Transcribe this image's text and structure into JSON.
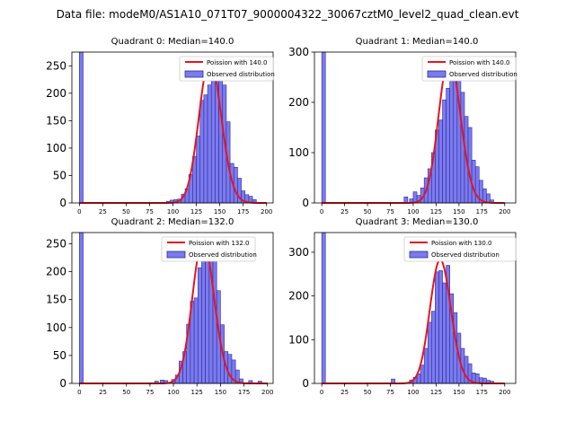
{
  "figure_title": "Data file: modeM0/AS1A10_071T07_9000004322_30067cztM0_level2_quad_clean.evt",
  "colors": {
    "bar_fill": "#7b7bec",
    "bar_edge": "#2a2aa8",
    "curve": "#e8141c"
  },
  "legend": {
    "observed_label": "Observed distribution"
  },
  "chart_data": [
    {
      "type": "bar",
      "title": "Quadrant 0: Median=140.0",
      "poisson_label": "Poission with 140.0",
      "poisson_mean": 140.0,
      "poisson_scale": 262,
      "xlim": [
        -8,
        207
      ],
      "ylim": [
        0,
        275
      ],
      "xticks": [
        0,
        25,
        50,
        75,
        100,
        125,
        150,
        175,
        200
      ],
      "yticks": [
        0,
        50,
        100,
        150,
        200,
        250
      ],
      "bin_width": 4,
      "bins": [
        [
          0,
          275
        ],
        [
          93,
          3
        ],
        [
          97,
          5
        ],
        [
          101,
          6
        ],
        [
          105,
          7
        ],
        [
          109,
          16
        ],
        [
          113,
          26
        ],
        [
          117,
          52
        ],
        [
          121,
          85
        ],
        [
          125,
          122
        ],
        [
          129,
          187
        ],
        [
          133,
          197
        ],
        [
          137,
          215
        ],
        [
          141,
          257
        ],
        [
          145,
          265
        ],
        [
          149,
          230
        ],
        [
          153,
          215
        ],
        [
          157,
          148
        ],
        [
          161,
          72
        ],
        [
          165,
          65
        ],
        [
          169,
          45
        ],
        [
          173,
          22
        ],
        [
          177,
          15
        ],
        [
          181,
          12
        ],
        [
          185,
          6
        ]
      ]
    },
    {
      "type": "bar",
      "title": "Quadrant 1: Median=140.0",
      "poisson_label": "Poission with 140.0",
      "poisson_mean": 140.0,
      "poisson_scale": 290,
      "xlim": [
        -8,
        212
      ],
      "ylim": [
        0,
        300
      ],
      "xticks": [
        0,
        25,
        50,
        75,
        100,
        125,
        150,
        175,
        200
      ],
      "yticks": [
        0,
        100,
        200,
        300
      ],
      "bin_width": 4,
      "bins": [
        [
          0,
          300
        ],
        [
          90,
          12
        ],
        [
          96,
          8
        ],
        [
          100,
          22
        ],
        [
          104,
          15
        ],
        [
          108,
          30
        ],
        [
          112,
          50
        ],
        [
          116,
          68
        ],
        [
          120,
          100
        ],
        [
          124,
          145
        ],
        [
          128,
          165
        ],
        [
          132,
          205
        ],
        [
          136,
          228
        ],
        [
          140,
          245
        ],
        [
          144,
          270
        ],
        [
          148,
          282
        ],
        [
          152,
          220
        ],
        [
          156,
          172
        ],
        [
          160,
          150
        ],
        [
          164,
          85
        ],
        [
          168,
          72
        ],
        [
          172,
          45
        ],
        [
          176,
          28
        ],
        [
          180,
          18
        ],
        [
          184,
          6
        ]
      ]
    },
    {
      "type": "bar",
      "title": "Quadrant 2: Median=132.0",
      "poisson_label": "Poission with 132.0",
      "poisson_mean": 132.0,
      "poisson_scale": 256,
      "xlim": [
        -8,
        206
      ],
      "ylim": [
        0,
        270
      ],
      "xticks": [
        0,
        25,
        50,
        75,
        100,
        125,
        150,
        175,
        200
      ],
      "yticks": [
        0,
        50,
        100,
        150,
        200,
        250
      ],
      "bin_width": 4,
      "bins": [
        [
          0,
          270
        ],
        [
          80,
          4
        ],
        [
          86,
          6
        ],
        [
          90,
          5
        ],
        [
          98,
          7
        ],
        [
          102,
          15
        ],
        [
          106,
          40
        ],
        [
          110,
          57
        ],
        [
          114,
          106
        ],
        [
          118,
          147
        ],
        [
          122,
          153
        ],
        [
          126,
          207
        ],
        [
          130,
          225
        ],
        [
          134,
          245
        ],
        [
          138,
          240
        ],
        [
          142,
          220
        ],
        [
          146,
          166
        ],
        [
          150,
          105
        ],
        [
          154,
          57
        ],
        [
          158,
          52
        ],
        [
          162,
          42
        ],
        [
          166,
          24
        ],
        [
          170,
          8
        ],
        [
          180,
          5
        ],
        [
          190,
          4
        ]
      ]
    },
    {
      "type": "bar",
      "title": "Quadrant 3: Median=130.0",
      "poisson_label": "Poission with 130.0",
      "poisson_mean": 130.0,
      "poisson_scale": 283,
      "xlim": [
        -8,
        212
      ],
      "ylim": [
        0,
        345
      ],
      "xticks": [
        0,
        25,
        50,
        75,
        100,
        125,
        150,
        175,
        200
      ],
      "yticks": [
        0,
        100,
        200,
        300
      ],
      "bin_width": 4,
      "bins": [
        [
          0,
          345
        ],
        [
          76,
          10
        ],
        [
          96,
          8
        ],
        [
          100,
          14
        ],
        [
          104,
          22
        ],
        [
          108,
          42
        ],
        [
          112,
          80
        ],
        [
          116,
          140
        ],
        [
          120,
          165
        ],
        [
          124,
          255
        ],
        [
          128,
          258
        ],
        [
          132,
          230
        ],
        [
          136,
          270
        ],
        [
          140,
          205
        ],
        [
          144,
          162
        ],
        [
          148,
          115
        ],
        [
          152,
          80
        ],
        [
          156,
          62
        ],
        [
          160,
          45
        ],
        [
          164,
          24
        ],
        [
          168,
          22
        ],
        [
          172,
          13
        ],
        [
          176,
          12
        ],
        [
          180,
          7
        ],
        [
          184,
          5
        ]
      ]
    }
  ]
}
